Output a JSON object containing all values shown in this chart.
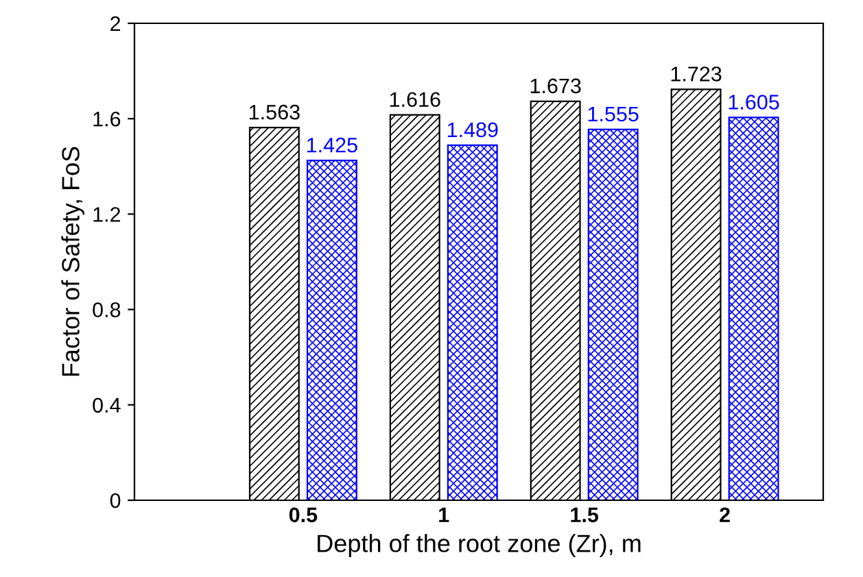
{
  "chart_data": {
    "type": "bar",
    "xlabel": "Depth of the root zone (Zr), m",
    "ylabel": "Factor of Safety, FoS",
    "categories": [
      "0.5",
      "1",
      "1.5",
      "2"
    ],
    "series": [
      {
        "color": "#000000",
        "values": [
          1.563,
          1.616,
          1.673,
          1.723
        ]
      },
      {
        "color": "#0000ff",
        "values": [
          1.425,
          1.489,
          1.555,
          1.605
        ]
      }
    ],
    "ylim": [
      0,
      2
    ],
    "yticks": [
      0,
      0.4,
      0.8,
      1.2,
      1.6,
      2
    ],
    "grid": false,
    "data_labels": true
  }
}
